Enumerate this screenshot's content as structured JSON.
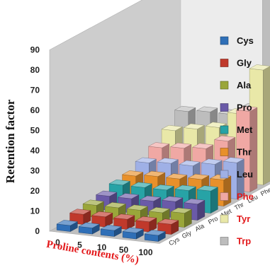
{
  "chart_data": {
    "type": "bar3d",
    "title": "",
    "ylabel": "Retention factor",
    "xlabel": "Proline contents (%)",
    "ylim": [
      0,
      90
    ],
    "yticks": [
      0,
      10,
      20,
      30,
      40,
      50,
      60,
      70,
      80,
      90
    ],
    "categories": [
      "0",
      "5",
      "10",
      "50",
      "100"
    ],
    "depth_labels": [
      "Cys",
      "Gly",
      "Ala",
      "Pro",
      "Met",
      "Thr",
      "Leu",
      "Phe",
      "Tyr",
      "Trp"
    ],
    "legend_position": "right",
    "series": [
      {
        "name": "Cys",
        "color": "#2f6fb7",
        "label_color": "#111111",
        "values": [
          3,
          3,
          3,
          3,
          3
        ]
      },
      {
        "name": "Gly",
        "color": "#c0392b",
        "label_color": "#111111",
        "values": [
          5,
          5,
          5,
          5,
          5
        ]
      },
      {
        "name": "Ala",
        "color": "#9aa63a",
        "label_color": "#111111",
        "values": [
          6,
          6,
          6,
          6,
          7
        ]
      },
      {
        "name": "Pro",
        "color": "#6a5aa8",
        "label_color": "#111111",
        "values": [
          7,
          7,
          7,
          8,
          8
        ]
      },
      {
        "name": "Met",
        "color": "#27a3a6",
        "label_color": "#111111",
        "values": [
          9,
          9,
          9,
          10,
          11
        ]
      },
      {
        "name": "Thr",
        "color": "#e8902a",
        "label_color": "#111111",
        "values": [
          10,
          11,
          11,
          12,
          13
        ]
      },
      {
        "name": "Leu",
        "color": "#9fb0e6",
        "label_color": "#111111",
        "values": [
          13,
          14,
          14,
          16,
          18
        ]
      },
      {
        "name": "Phe",
        "color": "#f0a8a4",
        "label_color": "#e31a1c",
        "values": [
          17,
          18,
          19,
          24,
          40
        ]
      },
      {
        "name": "Tyr",
        "color": "#e9e8a8",
        "label_color": "#e31a1c",
        "values": [
          22,
          24,
          26,
          34,
          57
        ]
      },
      {
        "name": "Trp",
        "color": "#bdbdbd",
        "label_color": "#e31a1c",
        "values": [
          28,
          29,
          29,
          33,
          90
        ]
      }
    ]
  }
}
